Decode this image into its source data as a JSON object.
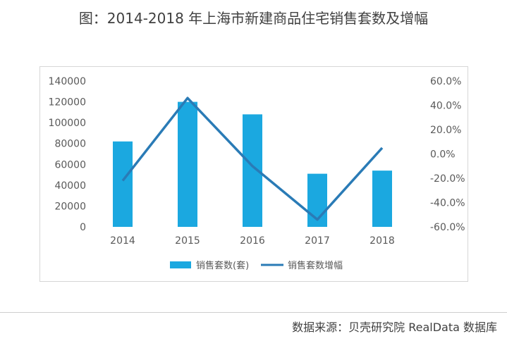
{
  "title": "图：2014-2018 年上海市新建商品住宅销售套数及增幅",
  "source": "数据来源：贝壳研究院 RealData 数据库",
  "colors": {
    "bar": "#1ba8e0",
    "line": "#2a7bb6",
    "text": "#595959"
  },
  "chart_data": {
    "type": "bar",
    "categories": [
      "2014",
      "2015",
      "2016",
      "2017",
      "2018"
    ],
    "series": [
      {
        "name": "销售套数(套)",
        "type": "bar",
        "axis": "left",
        "values": [
          82000,
          120000,
          108000,
          51000,
          54000
        ]
      },
      {
        "name": "销售套数增幅",
        "type": "line",
        "axis": "right",
        "values": [
          -22.0,
          46.0,
          -10.0,
          -54.0,
          5.0
        ]
      }
    ],
    "y_left": {
      "ylim": [
        0,
        140000
      ],
      "ticks": [
        "0",
        "20000",
        "40000",
        "60000",
        "80000",
        "100000",
        "120000",
        "140000"
      ]
    },
    "y_right": {
      "ylim": [
        -60,
        60
      ],
      "ticks": [
        "-60.0%",
        "-40.0%",
        "-20.0%",
        "0.0%",
        "20.0%",
        "40.0%",
        "60.0%"
      ]
    },
    "grid": false,
    "legend": "bottom"
  }
}
